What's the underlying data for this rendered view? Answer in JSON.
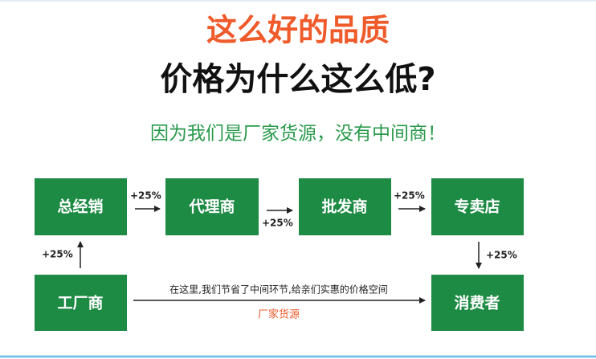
{
  "header": {
    "title_line1": "这么好的品质",
    "title_line2": "价格为什么这么低?",
    "subtitle": "因为我们是厂家货源，没有中间商！"
  },
  "nodes": [
    {
      "label": "总经销"
    },
    {
      "label": "代理商"
    },
    {
      "label": "批发商"
    },
    {
      "label": "专卖店"
    },
    {
      "label": "工厂商"
    },
    {
      "label": "消费者"
    }
  ],
  "edges": [
    {
      "label": "+25%"
    },
    {
      "label": "+25%"
    },
    {
      "label": "+25%"
    },
    {
      "label": "+25%"
    },
    {
      "label": "+25%"
    }
  ],
  "note": {
    "text": "在这里,我们节省了中间环节,给亲们实惠的价格空间",
    "source": "厂家货源"
  }
}
